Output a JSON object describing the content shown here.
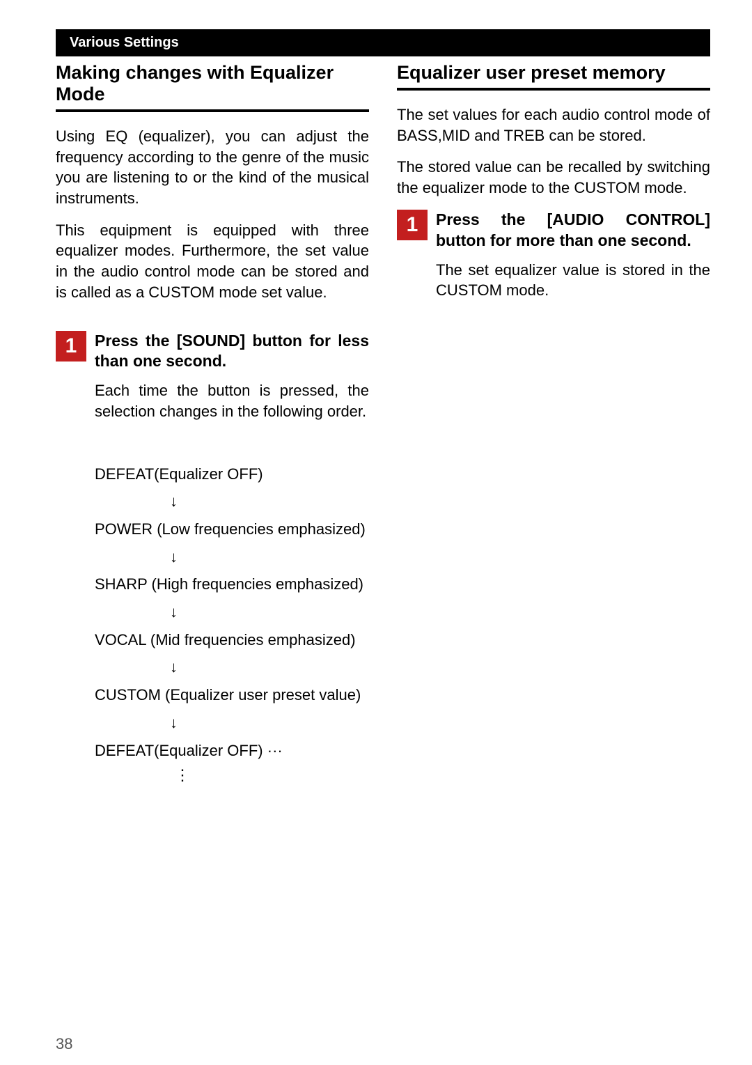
{
  "header": {
    "title": "Various Settings"
  },
  "left": {
    "title": "Making changes with Equalizer Mode",
    "para1": "Using EQ (equalizer), you can adjust the frequency according to the genre of the music you are listening to or the kind of the musical instruments.",
    "para2": "This equipment is equipped with three equalizer modes. Furthermore, the set value in the audio control mode can be stored and is called as a CUSTOM mode set value.",
    "step": {
      "num": "1",
      "instr": "Press the [SOUND] button for less than one second.",
      "body": "Each time the button is pressed, the selection changes in the following order."
    },
    "modes": {
      "m1": "DEFEAT(Equalizer OFF)",
      "m2": "POWER (Low frequencies emphasized)",
      "m3": "SHARP (High frequencies emphasized)",
      "m4": "VOCAL (Mid frequencies emphasized)",
      "m5": "CUSTOM (Equalizer user preset value)",
      "m6": "DEFEAT(Equalizer OFF)  ···"
    },
    "arrow": "↓",
    "vdots": "⋮"
  },
  "right": {
    "title": "Equalizer user preset memory",
    "para1": "The set values for each audio control mode of BASS,MID and TREB can be stored.",
    "para2": "The stored value can be recalled by switching the equalizer mode to the CUSTOM mode.",
    "step": {
      "num": "1",
      "instr": "Press the [AUDIO CONTROL] button for more than one second.",
      "body": "The set equalizer value is stored in the CUSTOM mode."
    }
  },
  "pageNum": "38"
}
